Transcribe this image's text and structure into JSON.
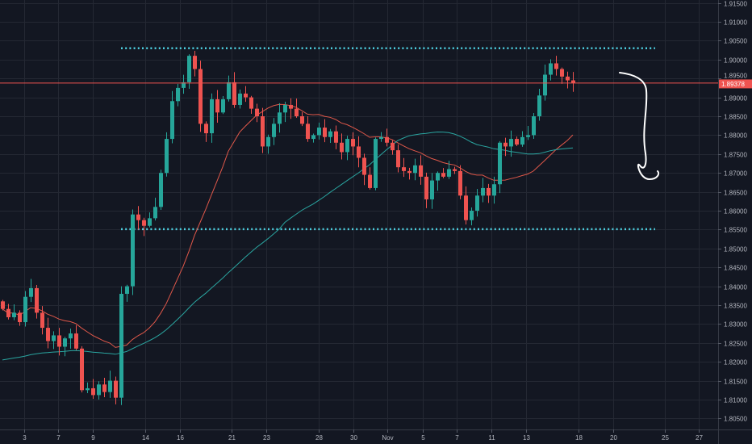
{
  "colors": {
    "background": "#131722",
    "grid": "#242833",
    "up": "#26a69a",
    "down": "#ef5350",
    "ma_fast": "#e0584a",
    "ma_slow": "#2aa5a0",
    "level_line": "#4dd0e1",
    "last_price": "#ef5350",
    "drawing": "#ffffff"
  },
  "chart_data": {
    "type": "candlestick",
    "title": "",
    "ylim": [
      1.8025,
      1.9155
    ],
    "y_ticks": [
      "1.91500",
      "1.91000",
      "1.90500",
      "1.90000",
      "1.89500",
      "1.89000",
      "1.88500",
      "1.88000",
      "1.87500",
      "1.87000",
      "1.86500",
      "1.86000",
      "1.85500",
      "1.85000",
      "1.84500",
      "1.84000",
      "1.83500",
      "1.83000",
      "1.82500",
      "1.82000",
      "1.81500",
      "1.81000",
      "1.80500"
    ],
    "x_ticks": [
      "3",
      "7",
      "9",
      "14",
      "16",
      "21",
      "23",
      "28",
      "30",
      "Nov",
      "5",
      "7",
      "11",
      "13",
      "18",
      "20",
      "25",
      "27"
    ],
    "first_open": 1.836,
    "closes": [
      1.834,
      1.8318,
      1.833,
      1.8305,
      1.8372,
      1.8395,
      1.833,
      1.829,
      1.8255,
      1.827,
      1.824,
      1.8262,
      1.8275,
      1.8235,
      1.8125,
      1.813,
      1.8112,
      1.814,
      1.812,
      1.815,
      1.8105,
      1.838,
      1.84,
      1.859,
      1.8575,
      1.856,
      1.858,
      1.861,
      1.87,
      1.879,
      1.889,
      1.8925,
      1.894,
      1.901,
      1.8975,
      1.883,
      1.8805,
      1.8895,
      1.886,
      1.8895,
      1.894,
      1.888,
      1.891,
      1.89,
      1.887,
      1.885,
      1.877,
      1.8795,
      1.883,
      1.886,
      1.888,
      1.887,
      1.885,
      1.883,
      1.879,
      1.88,
      1.882,
      1.8795,
      1.881,
      1.878,
      1.8755,
      1.879,
      1.877,
      1.874,
      1.8695,
      1.866,
      1.879,
      1.8795,
      1.878,
      1.876,
      1.8715,
      1.8705,
      1.87,
      1.872,
      1.869,
      1.863,
      1.868,
      1.87,
      1.869,
      1.871,
      1.8705,
      1.864,
      1.8575,
      1.86,
      1.864,
      1.866,
      1.864,
      1.867,
      1.878,
      1.877,
      1.879,
      1.8775,
      1.8795,
      1.88,
      1.885,
      1.8905,
      1.896,
      1.899,
      1.8975,
      1.8955,
      1.8945,
      1.89378
    ],
    "moving_averages": [
      {
        "name": "MA fast",
        "period": 20,
        "color_key": "ma_fast"
      },
      {
        "name": "MA slow",
        "period": 50,
        "color_key": "ma_slow"
      }
    ],
    "levels": [
      {
        "name": "resistance",
        "price": 1.903,
        "style": "dotted"
      },
      {
        "name": "support",
        "price": 1.8551,
        "style": "dotted"
      }
    ],
    "last_price": 1.89378,
    "last_price_label": "1.89378"
  }
}
